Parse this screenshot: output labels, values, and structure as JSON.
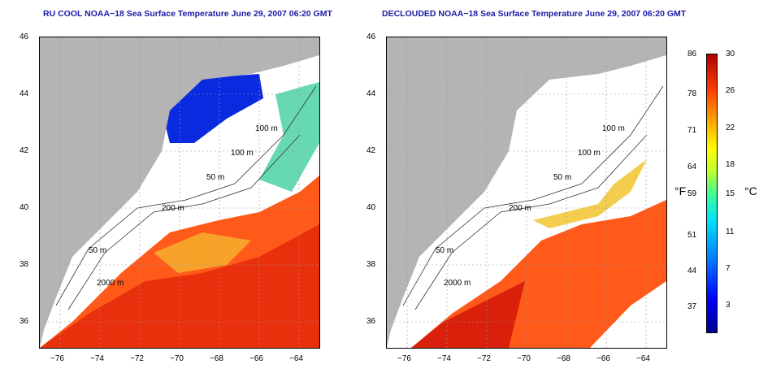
{
  "panels": [
    {
      "title": "RU COOL NOAA−18 Sea Surface Temperature June 29, 2007 06:20 GMT",
      "contour_labels": [
        "100 m",
        "100 m",
        "50 m",
        "200 m",
        "50 m",
        "2000 m"
      ]
    },
    {
      "title": "DECLOUDED NOAA−18 Sea Surface Temperature June 29, 2007 06:20 GMT",
      "contour_labels": [
        "100 m",
        "100 m",
        "50 m",
        "200 m",
        "50 m",
        "2000 m"
      ]
    }
  ],
  "axes": {
    "lon_ticks": [
      "−76",
      "−74",
      "−72",
      "−70",
      "−68",
      "−66",
      "−64"
    ],
    "lat_ticks": [
      "46",
      "44",
      "42",
      "40",
      "38",
      "36"
    ],
    "lon_range": [
      -77,
      -63
    ],
    "lat_range": [
      35,
      46
    ]
  },
  "colorbar": {
    "fahrenheit_unit": "°F",
    "celsius_unit": "°C",
    "fahrenheit_ticks": [
      "86",
      "78",
      "71",
      "64",
      "59",
      "51",
      "44",
      "37"
    ],
    "celsius_ticks": [
      "30",
      "26",
      "22",
      "18",
      "15",
      "11",
      "7",
      "3"
    ],
    "celsius_range": [
      0,
      30
    ]
  },
  "colors": {
    "title": "#1a1aa6",
    "land": "#b4b4b4",
    "warm": "#ff4a10",
    "cold": "#0a2ae0"
  }
}
